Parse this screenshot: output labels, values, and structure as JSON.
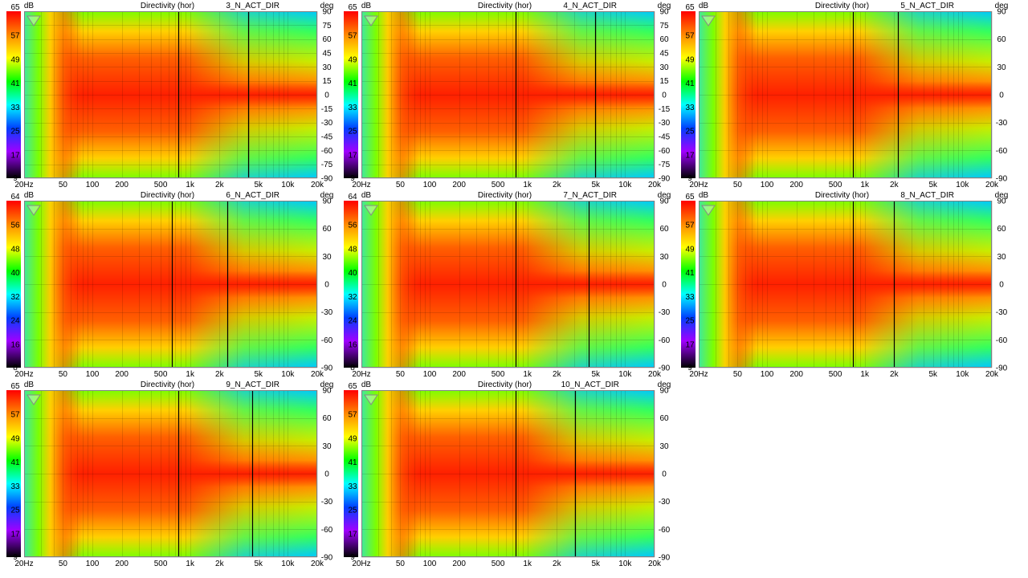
{
  "chart_data": [
    {
      "type": "heatmap",
      "title": "3_N_ACT_DIR",
      "subtitle": "Directivity (hor)",
      "colorbar": {
        "unit": "dB",
        "ticks": [
          65,
          57,
          49,
          41,
          33,
          25,
          17,
          9
        ],
        "range": [
          9,
          65
        ]
      },
      "x_ticks": [
        "20Hz",
        "50",
        "100",
        "200",
        "500",
        "1k",
        "2k",
        "5k",
        "10k",
        "20k"
      ],
      "xlim": [
        20,
        20000
      ],
      "x_scale": "log",
      "y_unit": "deg",
      "y_ticks": [
        90,
        75,
        60,
        45,
        30,
        15,
        0,
        -15,
        -30,
        -45,
        -60,
        -75,
        -90
      ],
      "ylim": [
        -90,
        90
      ],
      "cursors_hz": [
        750,
        3900
      ]
    },
    {
      "type": "heatmap",
      "title": "4_N_ACT_DIR",
      "subtitle": "Directivity (hor)",
      "colorbar": {
        "unit": "dB",
        "ticks": [
          65,
          57,
          49,
          41,
          33,
          25,
          17,
          9
        ],
        "range": [
          9,
          65
        ]
      },
      "x_ticks": [
        "20Hz",
        "50",
        "100",
        "200",
        "500",
        "1k",
        "2k",
        "5k",
        "10k",
        "20k"
      ],
      "xlim": [
        20,
        20000
      ],
      "x_scale": "log",
      "y_unit": "deg",
      "y_ticks": [
        90,
        75,
        60,
        45,
        30,
        15,
        0,
        -15,
        -30,
        -45,
        -60,
        -75,
        -90
      ],
      "ylim": [
        -90,
        90
      ],
      "cursors_hz": [
        750,
        4900
      ]
    },
    {
      "type": "heatmap",
      "title": "5_N_ACT_DIR",
      "subtitle": "Directivity (hor)",
      "colorbar": {
        "unit": "dB",
        "ticks": [
          65,
          57,
          49,
          41,
          33,
          25,
          17,
          9
        ],
        "range": [
          9,
          65
        ]
      },
      "x_ticks": [
        "20Hz",
        "50",
        "100",
        "200",
        "500",
        "1k",
        "2k",
        "5k",
        "10k",
        "20k"
      ],
      "xlim": [
        20,
        20000
      ],
      "x_scale": "log",
      "y_unit": "deg",
      "y_ticks": [
        90,
        60,
        30,
        0,
        -30,
        -60,
        -90
      ],
      "ylim": [
        -90,
        90
      ],
      "cursors_hz": [
        750,
        2200
      ]
    },
    {
      "type": "heatmap",
      "title": "6_N_ACT_DIR",
      "subtitle": "Directivity (hor)",
      "colorbar": {
        "unit": "dB",
        "ticks": [
          64,
          56,
          48,
          40,
          32,
          24,
          16,
          8
        ],
        "range": [
          8,
          64
        ]
      },
      "x_ticks": [
        "20Hz",
        "50",
        "100",
        "200",
        "500",
        "1k",
        "2k",
        "5k",
        "10k",
        "20k"
      ],
      "xlim": [
        20,
        20000
      ],
      "x_scale": "log",
      "y_unit": "deg",
      "y_ticks": [
        90,
        60,
        30,
        0,
        -30,
        -60,
        -90
      ],
      "ylim": [
        -90,
        90
      ],
      "cursors_hz": [
        650,
        2400
      ]
    },
    {
      "type": "heatmap",
      "title": "7_N_ACT_DIR",
      "subtitle": "Directivity (hor)",
      "colorbar": {
        "unit": "dB",
        "ticks": [
          64,
          56,
          48,
          40,
          32,
          24,
          16,
          8
        ],
        "range": [
          8,
          64
        ]
      },
      "x_ticks": [
        "20Hz",
        "50",
        "100",
        "200",
        "500",
        "1k",
        "2k",
        "5k",
        "10k",
        "20k"
      ],
      "xlim": [
        20,
        20000
      ],
      "x_scale": "log",
      "y_unit": "deg",
      "y_ticks": [
        90,
        60,
        30,
        0,
        -30,
        -60,
        -90
      ],
      "ylim": [
        -90,
        90
      ],
      "cursors_hz": [
        750,
        4200
      ]
    },
    {
      "type": "heatmap",
      "title": "8_N_ACT_DIR",
      "subtitle": "Directivity (hor)",
      "colorbar": {
        "unit": "dB",
        "ticks": [
          65,
          57,
          49,
          41,
          33,
          25,
          17,
          9
        ],
        "range": [
          9,
          65
        ]
      },
      "x_ticks": [
        "20Hz",
        "50",
        "100",
        "200",
        "500",
        "1k",
        "2k",
        "5k",
        "10k",
        "20k"
      ],
      "xlim": [
        20,
        20000
      ],
      "x_scale": "log",
      "y_unit": "deg",
      "y_ticks": [
        90,
        60,
        30,
        0,
        -30,
        -60,
        -90
      ],
      "ylim": [
        -90,
        90
      ],
      "cursors_hz": [
        750,
        2000
      ]
    },
    {
      "type": "heatmap",
      "title": "9_N_ACT_DIR",
      "subtitle": "Directivity (hor)",
      "colorbar": {
        "unit": "dB",
        "ticks": [
          65,
          57,
          49,
          41,
          33,
          25,
          17,
          9
        ],
        "range": [
          9,
          65
        ]
      },
      "x_ticks": [
        "20Hz",
        "50",
        "100",
        "200",
        "500",
        "1k",
        "2k",
        "5k",
        "10k",
        "20k"
      ],
      "xlim": [
        20,
        20000
      ],
      "x_scale": "log",
      "y_unit": "deg",
      "y_ticks": [
        90,
        60,
        30,
        0,
        -30,
        -60,
        -90
      ],
      "ylim": [
        -90,
        90
      ],
      "cursors_hz": [
        750,
        4300
      ]
    },
    {
      "type": "heatmap",
      "title": "10_N_ACT_DIR",
      "subtitle": "Directivity (hor)",
      "colorbar": {
        "unit": "dB",
        "ticks": [
          65,
          57,
          49,
          41,
          33,
          25,
          17,
          9
        ],
        "range": [
          9,
          65
        ]
      },
      "x_ticks": [
        "20Hz",
        "50",
        "100",
        "200",
        "500",
        "1k",
        "2k",
        "5k",
        "10k",
        "20k"
      ],
      "xlim": [
        20,
        20000
      ],
      "x_scale": "log",
      "y_unit": "deg",
      "y_ticks": [
        90,
        60,
        30,
        0,
        -30,
        -60,
        -90
      ],
      "ylim": [
        -90,
        90
      ],
      "cursors_hz": [
        750,
        3100
      ]
    }
  ]
}
